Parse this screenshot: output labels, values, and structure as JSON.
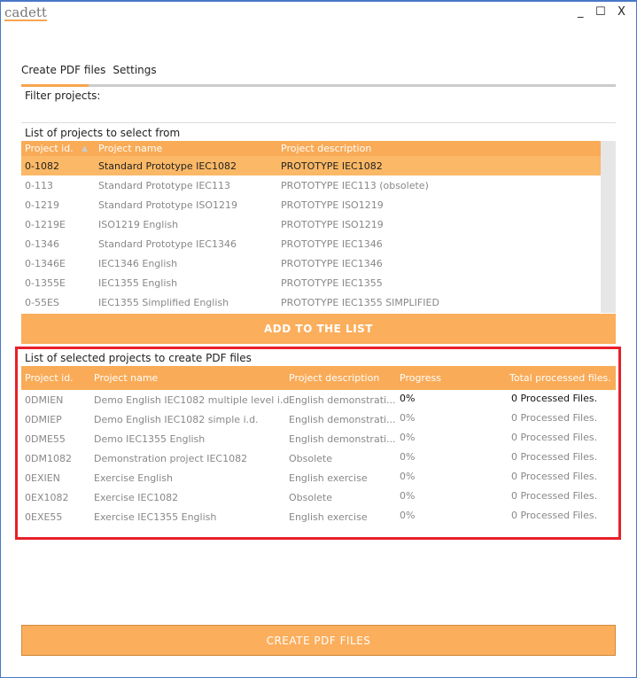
{
  "app": {
    "logo": "cadett",
    "minimize": "_",
    "maximize": "☐",
    "close": "X"
  },
  "tabs": [
    {
      "label": "Create PDF files",
      "active": true
    },
    {
      "label": "Settings"
    }
  ],
  "filter_label": "Filter projects:",
  "available": {
    "title": "List of projects to select from",
    "columns": [
      "Project id.",
      "Project name",
      "Project description"
    ],
    "sort_icon": "triangle-up",
    "rows": [
      [
        "0-1082",
        "Standard Prototype IEC1082",
        "PROTOTYPE IEC1082"
      ],
      [
        "0-113",
        "Standard Prototype IEC113",
        "PROTOTYPE IEC113 (obsolete)"
      ],
      [
        "0-1219",
        "Standard Prototype ISO1219",
        "PROTOTYPE ISO1219"
      ],
      [
        "0-1219E",
        "ISO1219 English",
        "PROTOTYPE ISO1219"
      ],
      [
        "0-1346",
        "Standard Prototype IEC1346",
        "PROTOTYPE IEC1346"
      ],
      [
        "0-1346E",
        "IEC1346 English",
        "PROTOTYPE IEC1346"
      ],
      [
        "0-1355E",
        "IEC1355 English",
        "PROTOTYPE IEC1355"
      ],
      [
        "0-55ES",
        "IEC1355 Simplified English",
        "PROTOTYPE IEC1355 SIMPLIFIED"
      ]
    ]
  },
  "add_button": "ADD TO THE LIST",
  "selected": {
    "title": "List of selected projects to create PDF files",
    "columns": [
      "Project id.",
      "Project name",
      "Project description",
      "Progress",
      "Total processed files."
    ],
    "rows": [
      [
        "0DMIEN",
        "Demo English IEC1082 multiple level i.d.",
        "English demonstrati...",
        "0%",
        "0 Processed Files."
      ],
      [
        "0DMIEP",
        "Demo English IEC1082 simple i.d.",
        "English demonstrati...",
        "0%",
        "0 Processed Files."
      ],
      [
        "0DME55",
        "Demo IEC1355 English",
        "English demonstrati...",
        "0%",
        "0 Processed Files."
      ],
      [
        "0DM1082",
        "Demonstration project IEC1082",
        "Obsolete",
        "0%",
        "0 Processed Files."
      ],
      [
        "0EXIEN",
        "Exercise English",
        "English exercise",
        "0%",
        "0 Processed Files."
      ],
      [
        "0EX1082",
        "Exercise IEC1082",
        "Obsolete",
        "0%",
        "0 Processed Files."
      ],
      [
        "0EXE55",
        "Exercise IEC1355 English",
        "English exercise",
        "0%",
        "0 Processed Files."
      ]
    ]
  },
  "create_button": "CREATE PDF FILES"
}
